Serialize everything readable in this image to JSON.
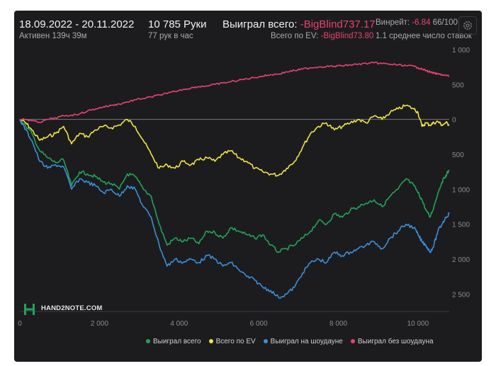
{
  "header": {
    "date_range": "18.09.2022 - 20.11.2022",
    "active": "Активен 139ч 39м",
    "hands": "10 785 Руки",
    "hands_per_hour": "77 рук в час",
    "won_total_label": "Выиграл всего:",
    "won_total_value": "-BigBlind737.17",
    "ev_label": "Всего по EV:",
    "ev_value": "-BigBlind73.80",
    "winrate_label": "Винрейт:",
    "winrate_value": "-6.84",
    "winrate_rest": "66/100",
    "avg_label": "1.1 среднее число ставок"
  },
  "watermark": "HAND2NOTE.COM",
  "icons": {
    "settings": "gear-icon",
    "logo": "hand2note-logo-icon"
  },
  "colors": {
    "background": "#1c1c1f",
    "won_total": "#21a35b",
    "ev": "#f0e440",
    "showdown": "#3b8fd9",
    "non_showdown": "#e8436e",
    "negative_text": "#e8436e"
  },
  "chart_data": {
    "type": "line",
    "xlim": [
      0,
      10785
    ],
    "ylim": [
      -2750,
      1000
    ],
    "y_axis_inverted_labels": true,
    "grid": false,
    "zero_line": true,
    "legend_position": "bottom",
    "x_ticks": [
      0,
      2000,
      4000,
      6000,
      8000,
      10000
    ],
    "x_tick_labels": [
      "0",
      "2 000",
      "4 000",
      "6 000",
      "8 000",
      "10 000"
    ],
    "y_ticks": [
      1000,
      500,
      0,
      -500,
      -1000,
      -1500,
      -2000,
      -2500
    ],
    "y_tick_labels": [
      "1 000",
      "500",
      "0",
      "500",
      "1 000",
      "1 500",
      "2 000",
      "2 500"
    ],
    "series": [
      {
        "name": "Выиграл всего",
        "color": "#21a35b",
        "x": [
          0,
          150,
          300,
          500,
          700,
          900,
          1100,
          1300,
          1500,
          1700,
          1900,
          2100,
          2300,
          2500,
          2700,
          2900,
          3100,
          3300,
          3500,
          3700,
          3900,
          4100,
          4300,
          4500,
          4700,
          4900,
          5100,
          5300,
          5500,
          5700,
          5900,
          6100,
          6300,
          6500,
          6700,
          6900,
          7100,
          7300,
          7500,
          7700,
          7900,
          8100,
          8300,
          8500,
          8700,
          8900,
          9100,
          9300,
          9500,
          9700,
          9900,
          10000,
          10100,
          10200,
          10300,
          10400,
          10500,
          10600,
          10700,
          10785
        ],
        "y": [
          0,
          -100,
          -200,
          -450,
          -550,
          -620,
          -580,
          -950,
          -750,
          -780,
          -820,
          -900,
          -920,
          -1000,
          -780,
          -820,
          -1000,
          -1100,
          -1500,
          -1800,
          -1700,
          -1750,
          -1700,
          -1780,
          -1600,
          -1620,
          -1700,
          -1550,
          -1600,
          -1650,
          -1700,
          -1650,
          -1800,
          -1900,
          -1850,
          -1800,
          -1700,
          -1600,
          -1450,
          -1500,
          -1350,
          -1400,
          -1300,
          -1250,
          -1200,
          -1150,
          -1250,
          -1100,
          -1000,
          -850,
          -950,
          -1050,
          -1150,
          -1300,
          -1400,
          -1250,
          -1050,
          -900,
          -800,
          -730
        ]
      },
      {
        "name": "Всего по EV",
        "color": "#f0e440",
        "x": [
          0,
          150,
          300,
          500,
          700,
          900,
          1100,
          1300,
          1500,
          1700,
          1900,
          2100,
          2300,
          2500,
          2700,
          2900,
          3100,
          3300,
          3500,
          3700,
          3900,
          4100,
          4300,
          4500,
          4700,
          4900,
          5100,
          5300,
          5500,
          5700,
          5900,
          6100,
          6300,
          6500,
          6700,
          6900,
          7100,
          7300,
          7500,
          7700,
          7900,
          8100,
          8300,
          8500,
          8700,
          8900,
          9100,
          9300,
          9500,
          9700,
          9900,
          10000,
          10100,
          10200,
          10300,
          10400,
          10500,
          10600,
          10700,
          10785
        ],
        "y": [
          0,
          -50,
          -150,
          -300,
          -250,
          -200,
          -100,
          -350,
          -200,
          -250,
          -150,
          -100,
          -120,
          -80,
          0,
          -100,
          -300,
          -500,
          -700,
          -650,
          -700,
          -600,
          -650,
          -580,
          -550,
          -600,
          -500,
          -450,
          -550,
          -600,
          -700,
          -750,
          -780,
          -800,
          -700,
          -600,
          -400,
          -200,
          -100,
          -50,
          -150,
          -100,
          -50,
          0,
          -50,
          50,
          0,
          100,
          150,
          200,
          150,
          100,
          -100,
          -50,
          -80,
          -50,
          -30,
          -80,
          -50,
          -73
        ]
      },
      {
        "name": "Выиграл на шоудауне",
        "color": "#3b8fd9",
        "x": [
          0,
          150,
          300,
          500,
          700,
          900,
          1100,
          1300,
          1500,
          1700,
          1900,
          2100,
          2300,
          2500,
          2700,
          2900,
          3100,
          3300,
          3500,
          3700,
          3900,
          4100,
          4300,
          4500,
          4700,
          4900,
          5100,
          5300,
          5500,
          5700,
          5900,
          6100,
          6300,
          6500,
          6700,
          6900,
          7100,
          7300,
          7500,
          7700,
          7900,
          8100,
          8300,
          8500,
          8700,
          8900,
          9100,
          9300,
          9500,
          9700,
          9900,
          10000,
          10100,
          10200,
          10300,
          10400,
          10500,
          10600,
          10700,
          10785
        ],
        "y": [
          0,
          -150,
          -300,
          -600,
          -700,
          -650,
          -680,
          -1000,
          -850,
          -900,
          -950,
          -1050,
          -1000,
          -1100,
          -950,
          -1000,
          -1250,
          -1400,
          -1800,
          -2100,
          -2000,
          -2050,
          -2000,
          -2050,
          -1950,
          -2000,
          -2100,
          -2050,
          -2150,
          -2250,
          -2300,
          -2400,
          -2450,
          -2550,
          -2500,
          -2400,
          -2200,
          -2050,
          -2000,
          -2050,
          -1900,
          -1950,
          -1900,
          -1850,
          -1800,
          -1750,
          -1850,
          -1700,
          -1600,
          -1500,
          -1550,
          -1650,
          -1750,
          -1800,
          -1900,
          -1800,
          -1600,
          -1500,
          -1400,
          -1350
        ]
      },
      {
        "name": "Выиграл без шоудауна",
        "color": "#e8436e",
        "x": [
          0,
          150,
          300,
          500,
          700,
          900,
          1100,
          1300,
          1500,
          1700,
          1900,
          2100,
          2300,
          2500,
          2700,
          2900,
          3100,
          3300,
          3500,
          3700,
          3900,
          4100,
          4300,
          4500,
          4700,
          4900,
          5100,
          5300,
          5500,
          5700,
          5900,
          6100,
          6300,
          6500,
          6700,
          6900,
          7100,
          7300,
          7500,
          7700,
          7900,
          8100,
          8300,
          8500,
          8700,
          8900,
          9100,
          9300,
          9500,
          9700,
          9900,
          10000,
          10100,
          10200,
          10300,
          10400,
          10500,
          10600,
          10700,
          10785
        ],
        "y": [
          0,
          0,
          -20,
          -40,
          0,
          20,
          50,
          60,
          80,
          120,
          150,
          180,
          200,
          220,
          250,
          280,
          300,
          320,
          350,
          370,
          400,
          430,
          450,
          470,
          480,
          500,
          520,
          540,
          560,
          580,
          600,
          620,
          640,
          650,
          680,
          700,
          720,
          740,
          750,
          760,
          760,
          770,
          780,
          790,
          800,
          810,
          800,
          790,
          780,
          770,
          760,
          740,
          720,
          700,
          680,
          660,
          650,
          640,
          630,
          620
        ]
      }
    ]
  }
}
